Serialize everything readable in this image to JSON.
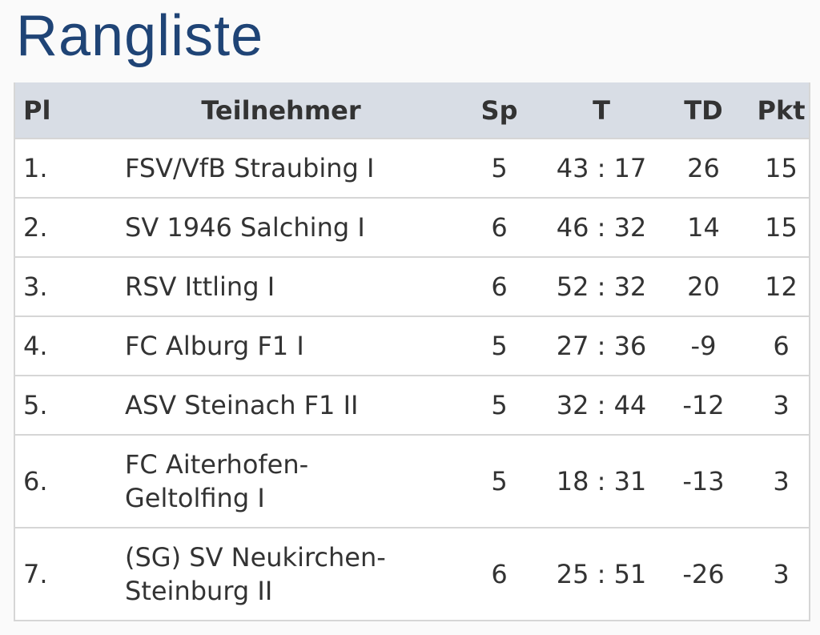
{
  "title": "Rangliste",
  "table": {
    "header": [
      "Pl",
      "Teilnehmer",
      "Sp",
      "T",
      "TD",
      "Pkt"
    ],
    "rows": [
      [
        "1.",
        "FSV/VfB Straubing I",
        "5",
        "43 : 17",
        "26",
        "15"
      ],
      [
        "2.",
        "SV 1946 Salching I",
        "6",
        "46 : 32",
        "14",
        "15"
      ],
      [
        "3.",
        "RSV Ittling I",
        "6",
        "52 : 32",
        "20",
        "12"
      ],
      [
        "4.",
        "FC Alburg F1 I",
        "5",
        "27 : 36",
        "-9",
        "6"
      ],
      [
        "5.",
        "ASV Steinach F1 II",
        "5",
        "32 : 44",
        "-12",
        "3"
      ],
      [
        "6.",
        "FC Aiterhofen-Geltolfing I",
        "5",
        "18 : 31",
        "-13",
        "3"
      ],
      [
        "7.",
        "(SG) SV Neukirchen-Steinburg II",
        "6",
        "25 : 51",
        "-26",
        "3"
      ]
    ]
  }
}
